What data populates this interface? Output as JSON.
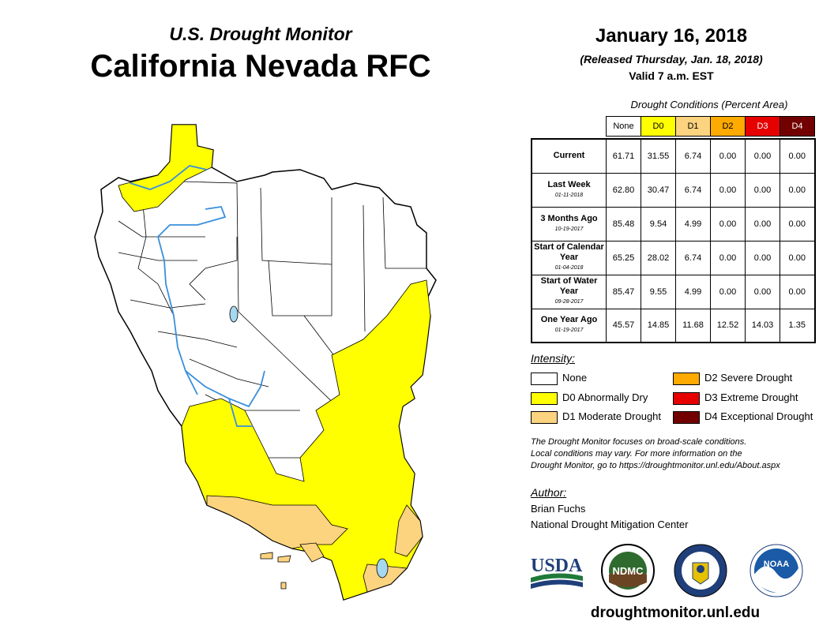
{
  "header": {
    "subtitle": "U.S. Drought Monitor",
    "title": "California Nevada RFC"
  },
  "info": {
    "date": "January 16, 2018",
    "released": "(Released Thursday, Jan. 18, 2018)",
    "valid": "Valid 7 a.m. EST"
  },
  "table": {
    "caption": "Drought Conditions (Percent Area)",
    "columns": [
      "None",
      "D0",
      "D1",
      "D2",
      "D3",
      "D4"
    ],
    "column_colors": [
      "#ffffff",
      "#ffff00",
      "#fcd37f",
      "#ffaa00",
      "#e60000",
      "#730000"
    ],
    "rows": [
      {
        "label": "Current",
        "date": "",
        "values": [
          "61.71",
          "31.55",
          "6.74",
          "0.00",
          "0.00",
          "0.00"
        ]
      },
      {
        "label": "Last Week",
        "date": "01-11-2018",
        "values": [
          "62.80",
          "30.47",
          "6.74",
          "0.00",
          "0.00",
          "0.00"
        ]
      },
      {
        "label": "3 Months Ago",
        "date": "10-19-2017",
        "values": [
          "85.48",
          "9.54",
          "4.99",
          "0.00",
          "0.00",
          "0.00"
        ]
      },
      {
        "label": "Start of Calendar Year",
        "date": "01-04-2018",
        "values": [
          "65.25",
          "28.02",
          "6.74",
          "0.00",
          "0.00",
          "0.00"
        ]
      },
      {
        "label": "Start of Water Year",
        "date": "09-28-2017",
        "values": [
          "85.47",
          "9.55",
          "4.99",
          "0.00",
          "0.00",
          "0.00"
        ]
      },
      {
        "label": "One Year Ago",
        "date": "01-19-2017",
        "values": [
          "45.57",
          "14.85",
          "11.68",
          "12.52",
          "14.03",
          "1.35"
        ]
      }
    ]
  },
  "legend": {
    "title": "Intensity:",
    "items": [
      {
        "label": "None",
        "color": "#ffffff"
      },
      {
        "label": "D0 Abnormally Dry",
        "color": "#ffff00"
      },
      {
        "label": "D1 Moderate Drought",
        "color": "#fcd37f"
      },
      {
        "label": "D2 Severe Drought",
        "color": "#ffaa00"
      },
      {
        "label": "D3 Extreme Drought",
        "color": "#e60000"
      },
      {
        "label": "D4 Exceptional Drought",
        "color": "#730000"
      }
    ]
  },
  "note": {
    "line1": "The Drought Monitor focuses on broad-scale conditions.",
    "line2": "Local conditions may vary. For more information on the",
    "line3": "Drought Monitor, go to https://droughtmonitor.unl.edu/About.aspx"
  },
  "author": {
    "title": "Author:",
    "name": "Brian Fuchs",
    "org": "National Drought Mitigation Center"
  },
  "logos": {
    "usda": "USDA",
    "ndmc": "NDMC",
    "noaa": "NOAA"
  },
  "footer": {
    "website": "droughtmonitor.unl.edu"
  },
  "map": {
    "colors": {
      "none": "#ffffff",
      "d0": "#ffff00",
      "d1": "#fcd37f",
      "water": "#a6d8f0",
      "river": "#3a8fdc",
      "border": "#000000"
    }
  }
}
